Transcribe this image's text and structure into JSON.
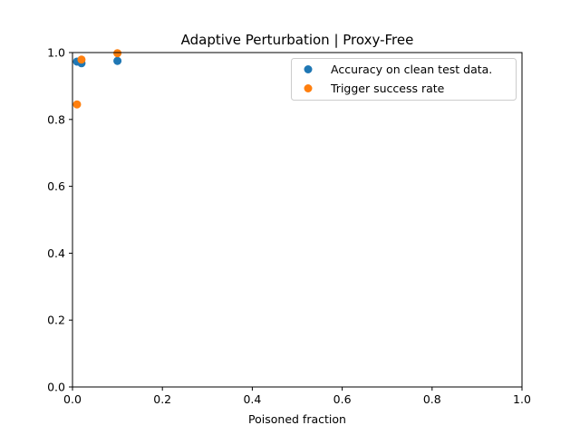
{
  "chart_data": {
    "type": "scatter",
    "title": "Adaptive Perturbation | Proxy-Free",
    "xlabel": "Poisoned fraction",
    "ylabel": "",
    "xlim": [
      0,
      1
    ],
    "ylim": [
      0,
      1
    ],
    "xticks": [
      "0.0",
      "0.2",
      "0.4",
      "0.6",
      "0.8",
      "1.0"
    ],
    "yticks": [
      "0.0",
      "0.2",
      "0.4",
      "0.6",
      "0.8",
      "1.0"
    ],
    "grid": false,
    "legend_position": "top-right",
    "series": [
      {
        "name": "Accuracy on clean test data.",
        "color": "#1f77b4",
        "points": [
          {
            "x": 0.01,
            "y": 0.973
          },
          {
            "x": 0.02,
            "y": 0.968
          },
          {
            "x": 0.1,
            "y": 0.975
          }
        ]
      },
      {
        "name": "Trigger success rate",
        "color": "#ff7f0e",
        "points": [
          {
            "x": 0.01,
            "y": 0.845
          },
          {
            "x": 0.02,
            "y": 0.979
          },
          {
            "x": 0.1,
            "y": 0.998
          }
        ]
      }
    ]
  }
}
